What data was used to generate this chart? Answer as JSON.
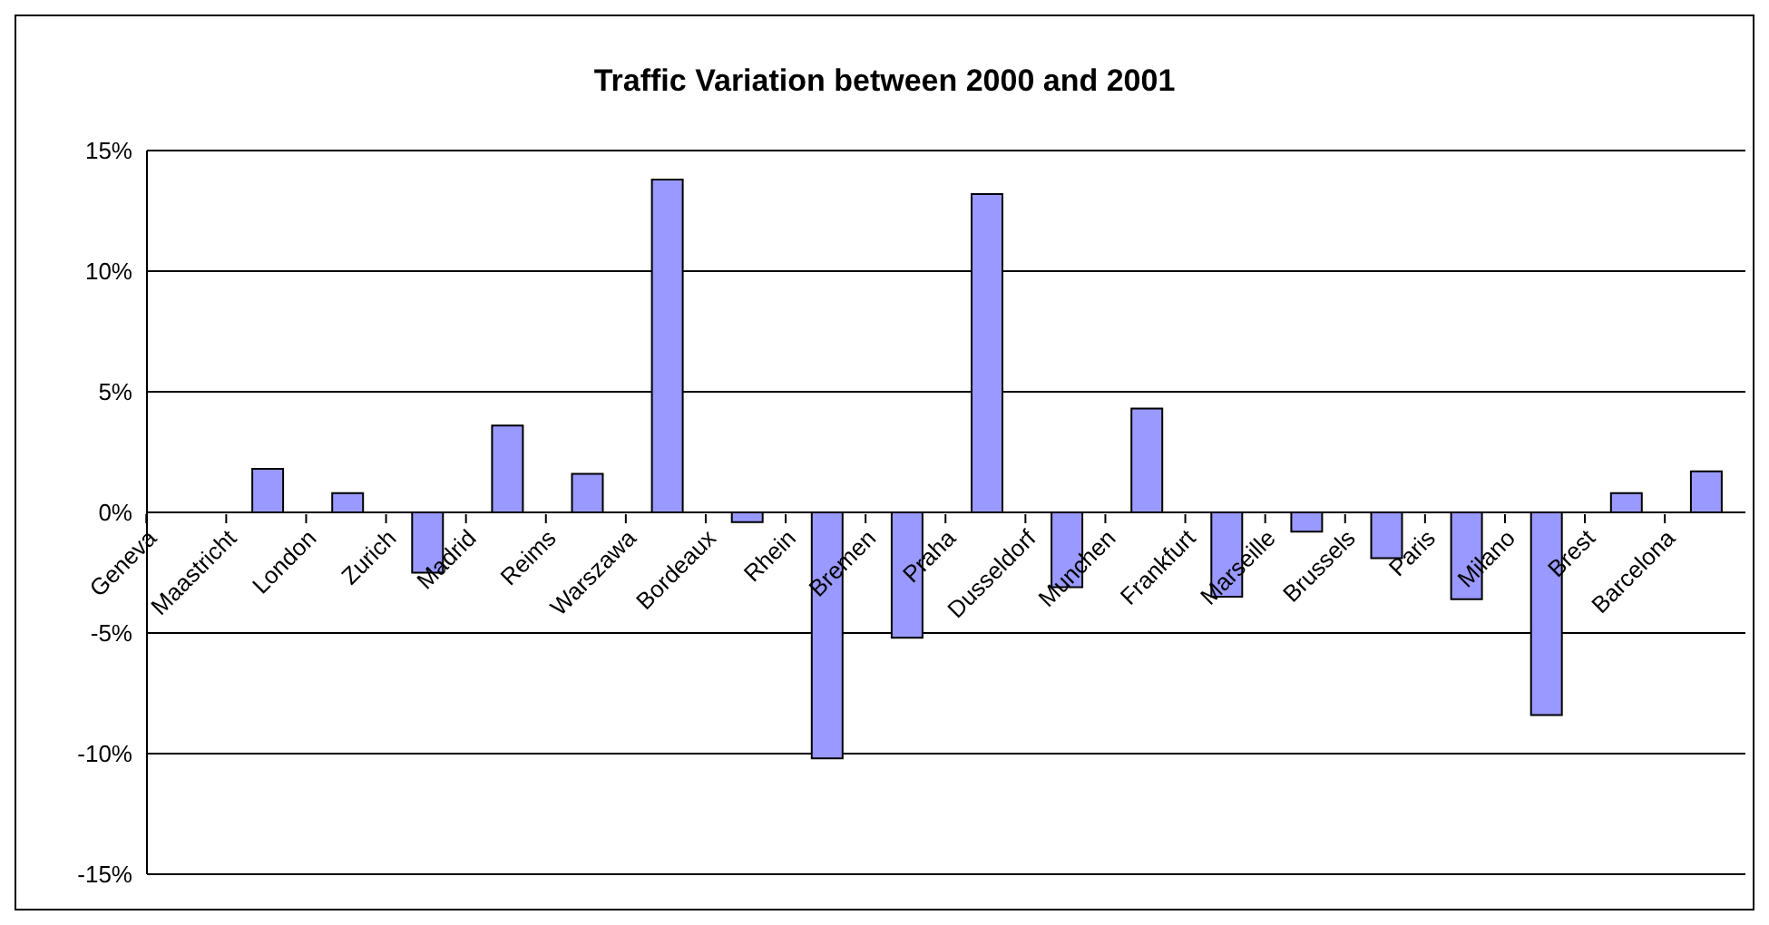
{
  "chart_data": {
    "type": "bar",
    "title": "Traffic Variation between 2000 and 2001",
    "categories": [
      "Geneva",
      "Maastricht",
      "London",
      "Zurich",
      "Madrid",
      "Reims",
      "Warszawa",
      "Bordeaux",
      "Rhein",
      "Bremen",
      "Praha",
      "Dusseldorf",
      "Munchen",
      "Frankfurt",
      "Marseille",
      "Brussels",
      "Paris",
      "Milano",
      "Brest",
      "Barcelona"
    ],
    "values": [
      null,
      1.8,
      0.8,
      -2.5,
      3.6,
      1.6,
      13.8,
      -0.4,
      -10.2,
      -5.2,
      13.2,
      -3.1,
      4.3,
      -3.5,
      -0.8,
      -1.9,
      -3.6,
      -8.4,
      0.8,
      1.7
    ],
    "color": "#9999ff",
    "ylim": [
      -15,
      15
    ],
    "yticks": [
      {
        "value": -15,
        "label": "-15%"
      },
      {
        "value": -10,
        "label": "-10%"
      },
      {
        "value": -5,
        "label": "-5%"
      },
      {
        "value": 0,
        "label": "0%"
      },
      {
        "value": 5,
        "label": "5%"
      },
      {
        "value": 10,
        "label": "10%"
      },
      {
        "value": 15,
        "label": "15%"
      }
    ],
    "grid": "y",
    "legend": false
  }
}
